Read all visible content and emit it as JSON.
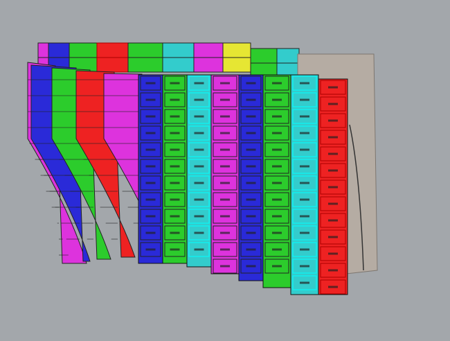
{
  "viewport": {
    "background": "#a3a7ab",
    "hull_gray": "#b5aca3"
  },
  "colors": {
    "blue": "#2a2ad8",
    "green": "#2ccc2c",
    "cyan": "#33cccc",
    "magenta": "#dd33dd",
    "red": "#ee2222",
    "yellow": "#e6e633"
  },
  "back_strakes": [
    "magenta",
    "blue",
    "green",
    "red",
    "green",
    "cyan",
    "magenta",
    "yellow",
    "green",
    "cyan"
  ],
  "side_strakes": [
    "magenta",
    "blue",
    "green",
    "red",
    "magenta"
  ],
  "front_strakes": [
    "blue",
    "green",
    "cyan",
    "magenta",
    "blue",
    "green",
    "cyan",
    "red"
  ]
}
